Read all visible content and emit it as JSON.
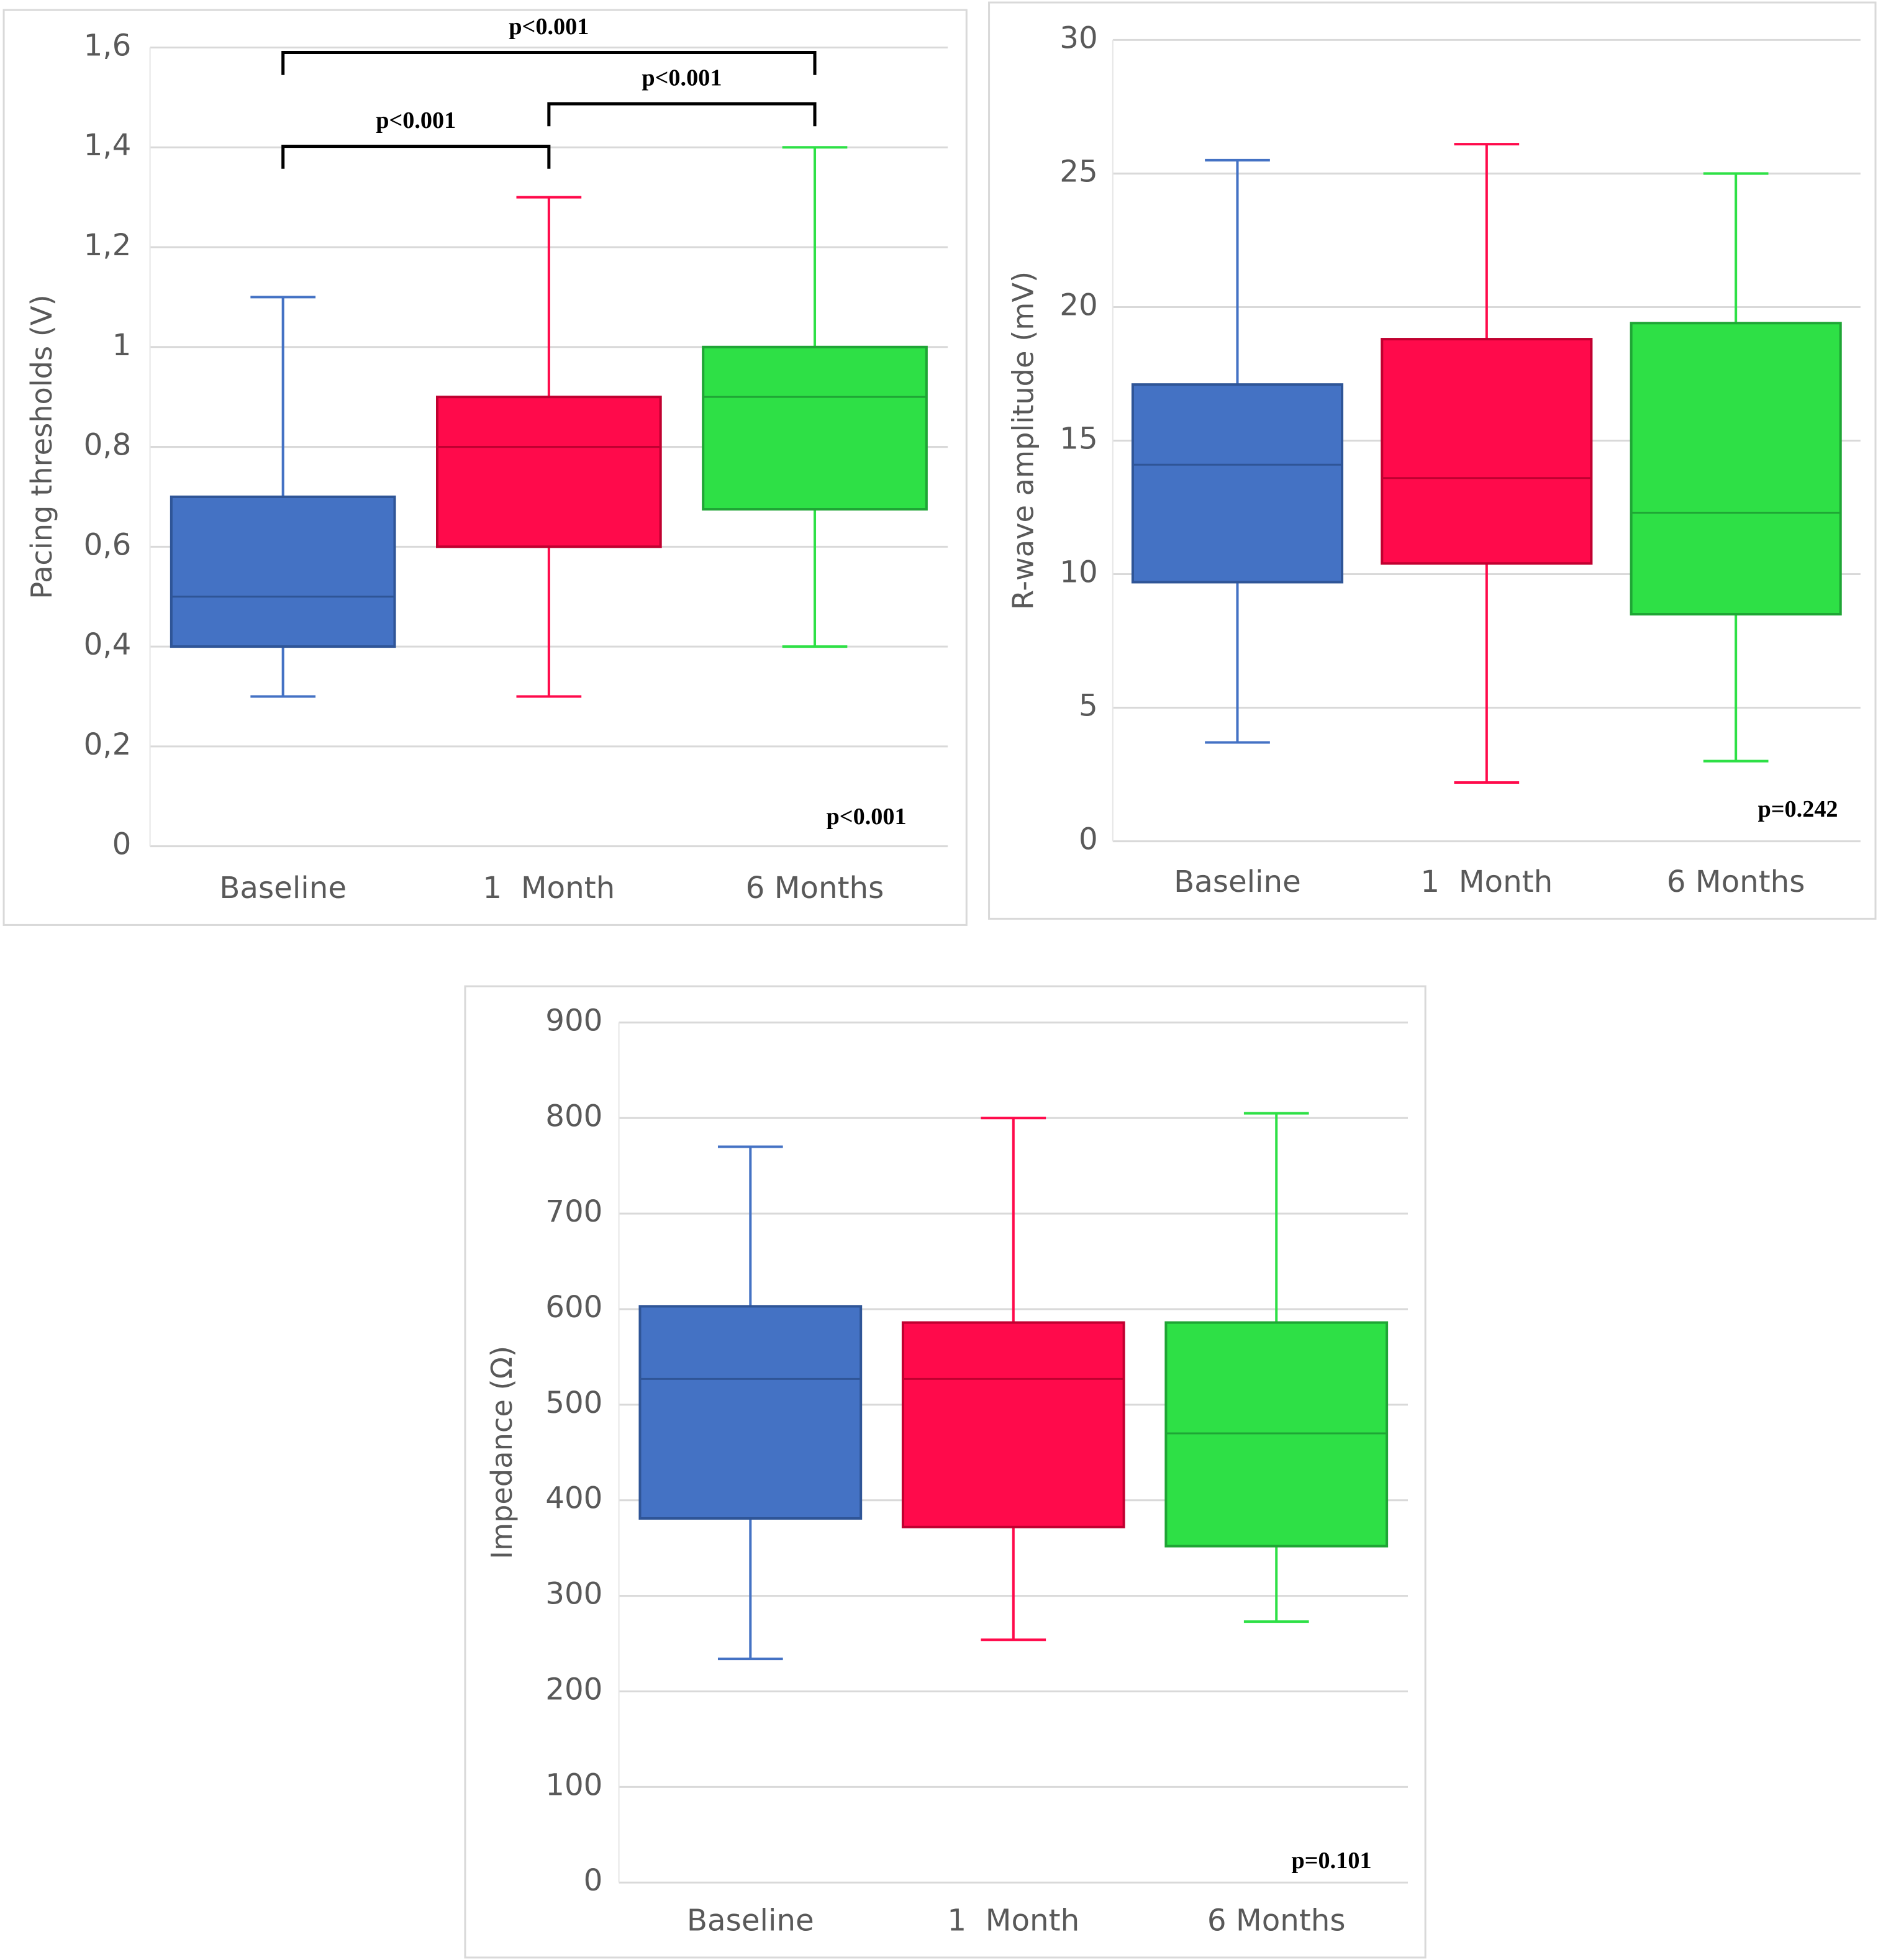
{
  "chart_data": [
    {
      "type": "box",
      "y_label": "Pacing thresholds (V)",
      "categories": [
        "Baseline",
        "1  Month",
        "6 Months"
      ],
      "colors": [
        "#4472c4",
        "#ff0a4b",
        "#2ee046"
      ],
      "stats": [
        {
          "min": 0.3,
          "q1": 0.4,
          "median": 0.5,
          "q3": 0.7,
          "max": 1.1
        },
        {
          "min": 0.3,
          "q1": 0.6,
          "median": 0.8,
          "q3": 0.9,
          "max": 1.3
        },
        {
          "min": 0.4,
          "q1": 0.675,
          "median": 0.9,
          "q3": 1.0,
          "max": 1.4
        }
      ],
      "ylim": [
        0,
        1.6
      ],
      "yticks": [
        0,
        {
          "value": 0.2,
          "label": "0,2"
        },
        {
          "value": 0.4,
          "label": "0,4"
        },
        {
          "value": 0.6,
          "label": "0,6"
        },
        {
          "value": 0.8,
          "label": "0,8"
        },
        1,
        {
          "value": 1.2,
          "label": "1,2"
        },
        {
          "value": 1.4,
          "label": "1,4"
        },
        {
          "value": 1.6,
          "label": "1,6"
        }
      ],
      "grid": true,
      "brackets": [
        {
          "label": "p<0.001",
          "between": [
            0,
            1
          ]
        },
        {
          "label": "p<0.001",
          "between": [
            1,
            2
          ]
        },
        {
          "label": "p<0.001",
          "between": [
            0,
            2
          ]
        }
      ],
      "p_value": "p<0.001"
    },
    {
      "type": "box",
      "y_label": "R-wave amplitude (mV)",
      "categories": [
        "Baseline",
        "1  Month",
        "6 Months"
      ],
      "colors": [
        "#4472c4",
        "#ff0a4b",
        "#2ee046"
      ],
      "stats": [
        {
          "min": 3.7,
          "q1": 9.7,
          "median": 14.1,
          "q3": 17.1,
          "max": 25.5
        },
        {
          "min": 2.2,
          "q1": 10.4,
          "median": 13.6,
          "q3": 18.8,
          "max": 26.1
        },
        {
          "min": 3.0,
          "q1": 8.5,
          "median": 12.3,
          "q3": 19.4,
          "max": 25.0
        }
      ],
      "ylim": [
        0,
        30
      ],
      "yticks": [
        0,
        5,
        10,
        15,
        20,
        25,
        30
      ],
      "grid": true,
      "p_value": "p=0.242"
    },
    {
      "type": "box",
      "y_label": "Impedance (Ω)",
      "categories": [
        "Baseline",
        "1  Month",
        "6 Months"
      ],
      "colors": [
        "#4472c4",
        "#ff0a4b",
        "#2ee046"
      ],
      "stats": [
        {
          "min": 234,
          "q1": 381,
          "median": 527,
          "q3": 603,
          "max": 770
        },
        {
          "min": 254,
          "q1": 372,
          "median": 527,
          "q3": 586,
          "max": 800
        },
        {
          "min": 273,
          "q1": 352,
          "median": 470,
          "q3": 586,
          "max": 805
        }
      ],
      "ylim": [
        0,
        900
      ],
      "yticks": [
        0,
        100,
        200,
        300,
        400,
        500,
        600,
        700,
        800,
        900
      ],
      "grid": true,
      "p_value": "p=0.101"
    }
  ]
}
